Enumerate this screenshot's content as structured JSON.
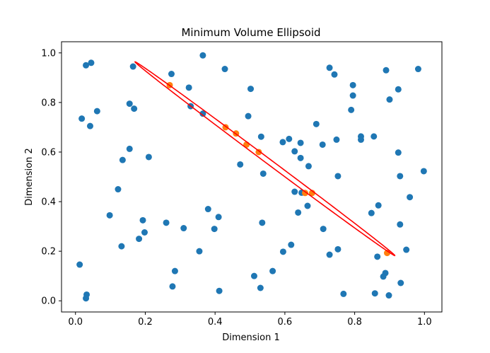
{
  "chart_data": {
    "type": "scatter",
    "title": "Minimum Volume Ellipsoid",
    "xlabel": "Dimension 1",
    "ylabel": "Dimension 2",
    "xlim": [
      -0.04,
      1.05
    ],
    "ylim": [
      -0.045,
      1.045
    ],
    "xticks": [
      0.0,
      0.2,
      0.4,
      0.6,
      0.8,
      1.0
    ],
    "xtick_labels": [
      "0.0",
      "0.2",
      "0.4",
      "0.6",
      "0.8",
      "1.0"
    ],
    "yticks": [
      0.0,
      0.2,
      0.4,
      0.6,
      0.8,
      1.0
    ],
    "ytick_labels": [
      "0.0",
      "0.2",
      "0.4",
      "0.6",
      "0.8",
      "1.0"
    ],
    "grid": false,
    "colors": {
      "points": "#1f77b4",
      "highlight": "#ff7f0e",
      "ellipse": "#ff0000"
    },
    "series": [
      {
        "name": "points",
        "type": "scatter",
        "points": [
          [
            0.03,
            0.95
          ],
          [
            0.045,
            0.96
          ],
          [
            0.165,
            0.945
          ],
          [
            0.365,
            0.99
          ],
          [
            0.428,
            0.935
          ],
          [
            0.728,
            0.94
          ],
          [
            0.742,
            0.913
          ],
          [
            0.89,
            0.93
          ],
          [
            0.982,
            0.935
          ],
          [
            0.275,
            0.915
          ],
          [
            0.325,
            0.86
          ],
          [
            0.502,
            0.855
          ],
          [
            0.795,
            0.87
          ],
          [
            0.925,
            0.853
          ],
          [
            0.795,
            0.828
          ],
          [
            0.9,
            0.812
          ],
          [
            0.155,
            0.795
          ],
          [
            0.168,
            0.775
          ],
          [
            0.062,
            0.765
          ],
          [
            0.33,
            0.785
          ],
          [
            0.365,
            0.755
          ],
          [
            0.79,
            0.77
          ],
          [
            0.018,
            0.735
          ],
          [
            0.042,
            0.705
          ],
          [
            0.495,
            0.745
          ],
          [
            0.69,
            0.713
          ],
          [
            0.818,
            0.663
          ],
          [
            0.855,
            0.663
          ],
          [
            0.818,
            0.65
          ],
          [
            0.532,
            0.662
          ],
          [
            0.612,
            0.653
          ],
          [
            0.748,
            0.65
          ],
          [
            0.594,
            0.64
          ],
          [
            0.645,
            0.637
          ],
          [
            0.708,
            0.63
          ],
          [
            0.155,
            0.613
          ],
          [
            0.628,
            0.603
          ],
          [
            0.925,
            0.598
          ],
          [
            0.21,
            0.58
          ],
          [
            0.645,
            0.576
          ],
          [
            0.135,
            0.568
          ],
          [
            0.472,
            0.55
          ],
          [
            0.668,
            0.543
          ],
          [
            0.538,
            0.513
          ],
          [
            0.998,
            0.523
          ],
          [
            0.752,
            0.503
          ],
          [
            0.93,
            0.503
          ],
          [
            0.122,
            0.45
          ],
          [
            0.628,
            0.44
          ],
          [
            0.648,
            0.436
          ],
          [
            0.958,
            0.418
          ],
          [
            0.665,
            0.383
          ],
          [
            0.868,
            0.385
          ],
          [
            0.38,
            0.37
          ],
          [
            0.098,
            0.345
          ],
          [
            0.638,
            0.356
          ],
          [
            0.848,
            0.354
          ],
          [
            0.41,
            0.338
          ],
          [
            0.193,
            0.325
          ],
          [
            0.26,
            0.315
          ],
          [
            0.535,
            0.315
          ],
          [
            0.93,
            0.308
          ],
          [
            0.31,
            0.293
          ],
          [
            0.398,
            0.29
          ],
          [
            0.71,
            0.29
          ],
          [
            0.198,
            0.276
          ],
          [
            0.182,
            0.25
          ],
          [
            0.618,
            0.226
          ],
          [
            0.132,
            0.22
          ],
          [
            0.752,
            0.208
          ],
          [
            0.948,
            0.206
          ],
          [
            0.355,
            0.2
          ],
          [
            0.595,
            0.198
          ],
          [
            0.728,
            0.186
          ],
          [
            0.865,
            0.178
          ],
          [
            0.012,
            0.146
          ],
          [
            0.285,
            0.12
          ],
          [
            0.565,
            0.12
          ],
          [
            0.888,
            0.112
          ],
          [
            0.512,
            0.1
          ],
          [
            0.882,
            0.098
          ],
          [
            0.932,
            0.072
          ],
          [
            0.278,
            0.058
          ],
          [
            0.53,
            0.052
          ],
          [
            0.412,
            0.04
          ],
          [
            0.768,
            0.028
          ],
          [
            0.858,
            0.03
          ],
          [
            0.898,
            0.022
          ],
          [
            0.032,
            0.025
          ],
          [
            0.03,
            0.01
          ]
        ]
      },
      {
        "name": "highlighted",
        "type": "scatter",
        "points": [
          [
            0.27,
            0.87
          ],
          [
            0.43,
            0.7
          ],
          [
            0.46,
            0.675
          ],
          [
            0.49,
            0.63
          ],
          [
            0.525,
            0.6
          ],
          [
            0.658,
            0.435
          ],
          [
            0.678,
            0.435
          ],
          [
            0.893,
            0.193
          ]
        ]
      },
      {
        "name": "ellipse",
        "type": "ellipse",
        "center": [
          0.543,
          0.573
        ],
        "semi_major": 0.54,
        "semi_minor": 0.009,
        "angle_deg": -46.4
      }
    ]
  }
}
